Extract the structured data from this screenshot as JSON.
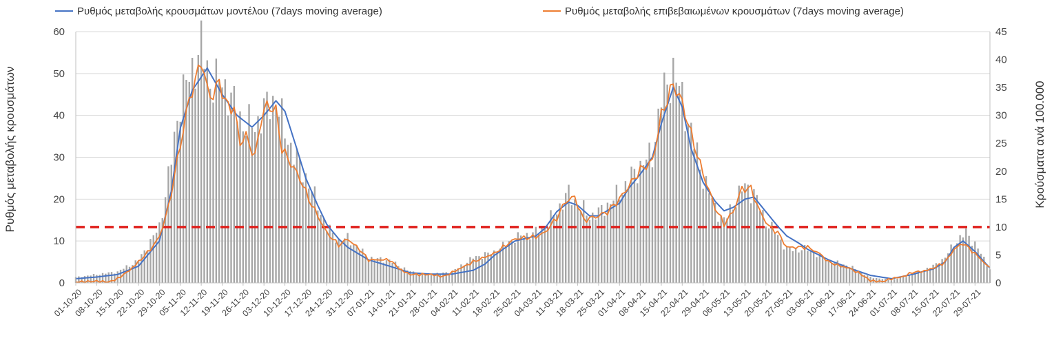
{
  "chart_data": {
    "type": "bar+line",
    "title": "",
    "ylabel_left": "Ρυθμός μεταβολής κρουσμάτων",
    "ylabel_right": "Κρούσματα ανά 100.000",
    "ylim_left": [
      0,
      60
    ],
    "ylim_right": [
      0,
      45
    ],
    "yticks_left": [
      "0",
      "10",
      "20",
      "30",
      "40",
      "50",
      "60"
    ],
    "yticks_right": [
      "0",
      "5",
      "10",
      "15",
      "20",
      "25",
      "30",
      "35",
      "40",
      "45"
    ],
    "x_start": "01-10-20",
    "x_end": "03-08-21",
    "xtick_labels": [
      "01-10-20",
      "08-10-20",
      "15-10-20",
      "22-10-20",
      "29-10-20",
      "05-11-20",
      "12-11-20",
      "19-11-20",
      "26-11-20",
      "03-12-20",
      "10-12-20",
      "17-12-20",
      "24-12-20",
      "31-12-20",
      "07-01-21",
      "14-01-21",
      "21-01-21",
      "28-01-21",
      "04-02-21",
      "11-02-21",
      "18-02-21",
      "25-02-21",
      "04-03-21",
      "11-03-21",
      "18-03-21",
      "25-03-21",
      "01-04-21",
      "08-04-21",
      "15-04-21",
      "22-04-21",
      "29-04-21",
      "06-05-21",
      "13-05-21",
      "20-05-21",
      "27-05-21",
      "03-06-21",
      "10-06-21",
      "17-06-21",
      "24-06-21",
      "01-07-21",
      "08-07-21",
      "15-07-21",
      "22-07-21",
      "29-07-21"
    ],
    "grid": "horizontal",
    "legend_position": "top",
    "threshold": {
      "axis": "right",
      "value": 10,
      "color": "#e0201c",
      "style": "dashed"
    },
    "series": [
      {
        "name": "Ρυθμός μεταβολής κρουσμάτων μοντέλου (7days moving average)",
        "kind": "line",
        "axis": "left",
        "color": "#4472c4",
        "points": [
          [
            "01-10-20",
            1.0
          ],
          [
            "08-10-20",
            1.4
          ],
          [
            "15-10-20",
            2.0
          ],
          [
            "22-10-20",
            4.0
          ],
          [
            "29-10-20",
            10.0
          ],
          [
            "02-11-20",
            22.0
          ],
          [
            "05-11-20",
            37.0
          ],
          [
            "09-11-20",
            46.0
          ],
          [
            "14-11-20",
            51.3
          ],
          [
            "19-11-20",
            45.0
          ],
          [
            "24-11-20",
            40.0
          ],
          [
            "29-11-20",
            37.2
          ],
          [
            "03-12-20",
            40.0
          ],
          [
            "07-12-20",
            43.5
          ],
          [
            "10-12-20",
            41.0
          ],
          [
            "14-12-20",
            32.0
          ],
          [
            "17-12-20",
            25.0
          ],
          [
            "21-12-20",
            18.5
          ],
          [
            "24-12-20",
            14.0
          ],
          [
            "28-12-20",
            10.5
          ],
          [
            "31-12-20",
            8.5
          ],
          [
            "07-01-21",
            5.5
          ],
          [
            "14-01-21",
            4.0
          ],
          [
            "21-01-21",
            2.4
          ],
          [
            "28-01-21",
            2.1
          ],
          [
            "04-02-21",
            2.1
          ],
          [
            "11-02-21",
            3.0
          ],
          [
            "15-02-21",
            4.5
          ],
          [
            "18-02-21",
            6.5
          ],
          [
            "25-02-21",
            10.0
          ],
          [
            "04-03-21",
            11.2
          ],
          [
            "07-03-21",
            13.0
          ],
          [
            "11-03-21",
            17.0
          ],
          [
            "15-03-21",
            19.3
          ],
          [
            "18-03-21",
            18.5
          ],
          [
            "22-03-21",
            16.0
          ],
          [
            "25-03-21",
            16.0
          ],
          [
            "01-04-21",
            19.0
          ],
          [
            "04-04-21",
            22.5
          ],
          [
            "08-04-21",
            26.0
          ],
          [
            "12-04-21",
            30.0
          ],
          [
            "15-04-21",
            38.0
          ],
          [
            "19-04-21",
            46.7
          ],
          [
            "22-04-21",
            42.0
          ],
          [
            "25-04-21",
            32.0
          ],
          [
            "29-04-21",
            24.0
          ],
          [
            "03-05-21",
            19.5
          ],
          [
            "06-05-21",
            17.2
          ],
          [
            "09-05-21",
            18.0
          ],
          [
            "13-05-21",
            20.0
          ],
          [
            "16-05-21",
            20.5
          ],
          [
            "20-05-21",
            17.0
          ],
          [
            "24-05-21",
            13.5
          ],
          [
            "27-05-21",
            11.2
          ],
          [
            "31-05-21",
            9.5
          ],
          [
            "03-06-21",
            8.0
          ],
          [
            "10-06-21",
            5.5
          ],
          [
            "17-06-21",
            3.5
          ],
          [
            "24-06-21",
            1.8
          ],
          [
            "01-07-21",
            1.0
          ],
          [
            "08-07-21",
            2.0
          ],
          [
            "12-07-21",
            2.8
          ],
          [
            "15-07-21",
            3.3
          ],
          [
            "19-07-21",
            5.0
          ],
          [
            "22-07-21",
            8.5
          ],
          [
            "25-07-21",
            10.0
          ],
          [
            "29-07-21",
            7.5
          ],
          [
            "03-08-21",
            3.5
          ]
        ]
      },
      {
        "name": "Ρυθμός μεταβολής επιβεβαιωμένων κρουσμάτων (7days moving average)",
        "kind": "line",
        "axis": "left",
        "color": "#ed7d31",
        "points": [
          [
            "01-10-20",
            0.2
          ],
          [
            "08-10-20",
            0.4
          ],
          [
            "12-10-20",
            0.2
          ],
          [
            "15-10-20",
            1.0
          ],
          [
            "19-10-20",
            3.0
          ],
          [
            "22-10-20",
            5.0
          ],
          [
            "26-10-20",
            8.0
          ],
          [
            "29-10-20",
            11.0
          ],
          [
            "01-11-20",
            18.0
          ],
          [
            "05-11-20",
            33.0
          ],
          [
            "08-11-20",
            44.0
          ],
          [
            "10-11-20",
            48.0
          ],
          [
            "12-11-20",
            53.5
          ],
          [
            "14-11-20",
            46.0
          ],
          [
            "16-11-20",
            44.5
          ],
          [
            "18-11-20",
            48.5
          ],
          [
            "20-11-20",
            43.0
          ],
          [
            "23-11-20",
            41.5
          ],
          [
            "25-11-20",
            33.5
          ],
          [
            "27-11-20",
            35.0
          ],
          [
            "30-11-20",
            30.0
          ],
          [
            "02-12-20",
            39.0
          ],
          [
            "04-12-20",
            42.5
          ],
          [
            "07-12-20",
            41.0
          ],
          [
            "09-12-20",
            32.0
          ],
          [
            "12-12-20",
            28.5
          ],
          [
            "15-12-20",
            25.0
          ],
          [
            "18-12-20",
            20.0
          ],
          [
            "21-12-20",
            16.0
          ],
          [
            "24-12-20",
            12.0
          ],
          [
            "28-12-20",
            9.0
          ],
          [
            "31-12-20",
            10.5
          ],
          [
            "04-01-21",
            8.0
          ],
          [
            "07-01-21",
            5.5
          ],
          [
            "14-01-21",
            5.5
          ],
          [
            "18-01-21",
            3.0
          ],
          [
            "21-01-21",
            2.0
          ],
          [
            "28-01-21",
            2.0
          ],
          [
            "01-02-21",
            1.5
          ],
          [
            "04-02-21",
            2.5
          ],
          [
            "11-02-21",
            5.0
          ],
          [
            "18-02-21",
            7.0
          ],
          [
            "25-02-21",
            10.5
          ],
          [
            "04-03-21",
            11.0
          ],
          [
            "07-03-21",
            12.0
          ],
          [
            "11-03-21",
            15.5
          ],
          [
            "14-03-21",
            19.5
          ],
          [
            "17-03-21",
            20.5
          ],
          [
            "20-03-21",
            15.0
          ],
          [
            "25-03-21",
            16.0
          ],
          [
            "28-03-21",
            17.0
          ],
          [
            "01-04-21",
            20.0
          ],
          [
            "05-04-21",
            24.0
          ],
          [
            "08-04-21",
            27.0
          ],
          [
            "12-04-21",
            29.0
          ],
          [
            "15-04-21",
            40.0
          ],
          [
            "19-04-21",
            47.5
          ],
          [
            "22-04-21",
            43.0
          ],
          [
            "26-04-21",
            33.0
          ],
          [
            "29-04-21",
            26.0
          ],
          [
            "03-05-21",
            18.0
          ],
          [
            "06-05-21",
            14.0
          ],
          [
            "09-05-21",
            17.0
          ],
          [
            "12-05-21",
            22.5
          ],
          [
            "15-05-21",
            22.5
          ],
          [
            "18-05-21",
            17.0
          ],
          [
            "21-05-21",
            13.5
          ],
          [
            "24-05-21",
            12.0
          ],
          [
            "27-05-21",
            8.5
          ],
          [
            "31-05-21",
            8.5
          ],
          [
            "03-06-21",
            8.5
          ],
          [
            "07-06-21",
            7.0
          ],
          [
            "10-06-21",
            5.0
          ],
          [
            "14-06-21",
            4.0
          ],
          [
            "17-06-21",
            3.5
          ],
          [
            "21-06-21",
            2.0
          ],
          [
            "24-06-21",
            0.5
          ],
          [
            "28-06-21",
            0.3
          ],
          [
            "01-07-21",
            1.0
          ],
          [
            "05-07-21",
            1.5
          ],
          [
            "08-07-21",
            2.5
          ],
          [
            "12-07-21",
            2.8
          ],
          [
            "15-07-21",
            3.5
          ],
          [
            "19-07-21",
            5.0
          ],
          [
            "22-07-21",
            8.0
          ],
          [
            "25-07-21",
            9.5
          ],
          [
            "29-07-21",
            7.0
          ],
          [
            "03-08-21",
            3.5
          ]
        ]
      },
      {
        "name": "",
        "kind": "bar",
        "axis": "right",
        "color": "#a6a6a6",
        "points": [
          [
            "01-10-20",
            1.0
          ],
          [
            "08-10-20",
            1.5
          ],
          [
            "15-10-20",
            2.0
          ],
          [
            "22-10-20",
            4.0
          ],
          [
            "29-10-20",
            10.0
          ],
          [
            "02-11-20",
            22.0
          ],
          [
            "05-11-20",
            33.0
          ],
          [
            "09-11-20",
            38.0
          ],
          [
            "12-11-20",
            42.5
          ],
          [
            "15-11-20",
            36.0
          ],
          [
            "19-11-20",
            36.0
          ],
          [
            "23-11-20",
            32.0
          ],
          [
            "26-11-20",
            28.5
          ],
          [
            "30-11-20",
            28.0
          ],
          [
            "03-12-20",
            31.0
          ],
          [
            "07-12-20",
            33.0
          ],
          [
            "10-12-20",
            27.0
          ],
          [
            "14-12-20",
            22.0
          ],
          [
            "17-12-20",
            19.0
          ],
          [
            "21-12-20",
            14.0
          ],
          [
            "24-12-20",
            10.0
          ],
          [
            "28-12-20",
            7.5
          ],
          [
            "31-12-20",
            8.0
          ],
          [
            "07-01-21",
            4.5
          ],
          [
            "14-01-21",
            4.0
          ],
          [
            "21-01-21",
            2.0
          ],
          [
            "28-01-21",
            1.5
          ],
          [
            "04-02-21",
            2.0
          ],
          [
            "11-02-21",
            4.5
          ],
          [
            "18-02-21",
            5.5
          ],
          [
            "25-02-21",
            8.0
          ],
          [
            "04-03-21",
            9.0
          ],
          [
            "07-03-21",
            10.0
          ],
          [
            "11-03-21",
            13.0
          ],
          [
            "15-03-21",
            16.0
          ],
          [
            "18-03-21",
            14.0
          ],
          [
            "22-03-21",
            12.0
          ],
          [
            "25-03-21",
            12.5
          ],
          [
            "01-04-21",
            16.0
          ],
          [
            "05-04-21",
            19.0
          ],
          [
            "08-04-21",
            21.0
          ],
          [
            "12-04-21",
            23.0
          ],
          [
            "15-04-21",
            33.0
          ],
          [
            "19-04-21",
            38.0
          ],
          [
            "22-04-21",
            33.0
          ],
          [
            "26-04-21",
            25.0
          ],
          [
            "29-04-21",
            19.0
          ],
          [
            "03-05-21",
            13.5
          ],
          [
            "06-05-21",
            11.0
          ],
          [
            "09-05-21",
            14.0
          ],
          [
            "13-05-21",
            17.5
          ],
          [
            "16-05-21",
            16.0
          ],
          [
            "20-05-21",
            11.0
          ],
          [
            "24-05-21",
            8.5
          ],
          [
            "27-05-21",
            6.0
          ],
          [
            "31-05-21",
            6.0
          ],
          [
            "03-06-21",
            6.0
          ],
          [
            "10-06-21",
            4.0
          ],
          [
            "17-06-21",
            3.0
          ],
          [
            "24-06-21",
            1.0
          ],
          [
            "01-07-21",
            0.5
          ],
          [
            "08-07-21",
            1.5
          ],
          [
            "15-07-21",
            3.0
          ],
          [
            "19-07-21",
            4.5
          ],
          [
            "22-07-21",
            7.0
          ],
          [
            "26-07-21",
            9.0
          ],
          [
            "29-07-21",
            7.0
          ],
          [
            "03-08-21",
            2.5
          ]
        ]
      }
    ]
  }
}
